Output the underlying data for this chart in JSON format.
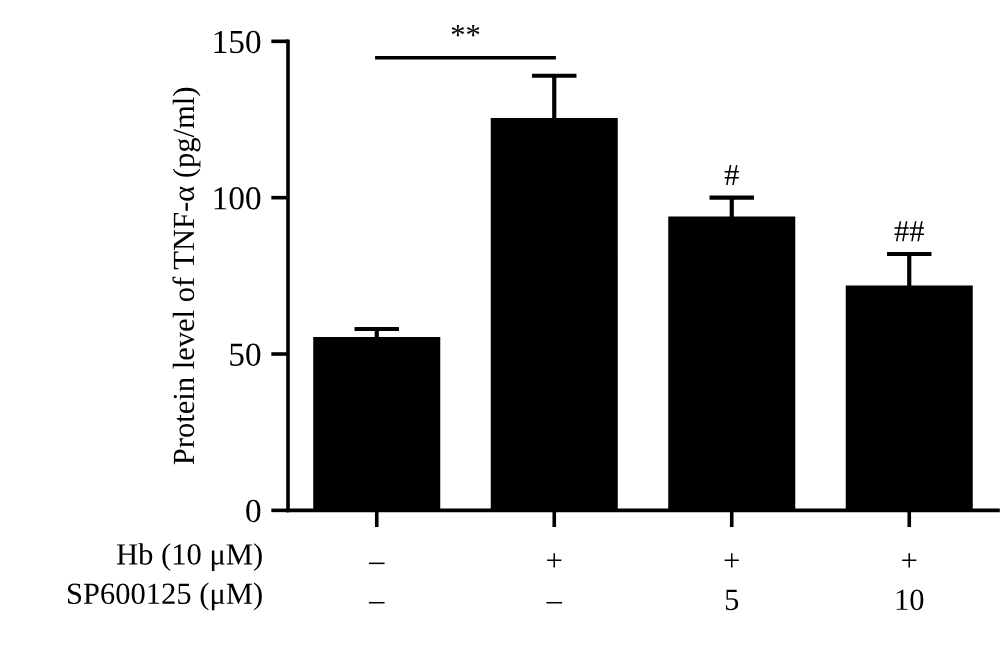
{
  "chart_data": {
    "type": "bar",
    "ylabel": "Protein level of TNF-α (pg/ml)",
    "xlabel": "Hb (10 μM)\nSP600125 (μM)",
    "categories": [
      "–\n–",
      "+\n–",
      "+\n5",
      "+\n10"
    ],
    "values": [
      55,
      125,
      93.5,
      71.5
    ],
    "errors": [
      3,
      14,
      6.5,
      10.5
    ],
    "color": "#000000",
    "ylim": [
      0,
      150
    ],
    "yticks": [
      0,
      50,
      100,
      150
    ],
    "grid": false,
    "annotations": [
      "**",
      "#",
      "##"
    ]
  }
}
